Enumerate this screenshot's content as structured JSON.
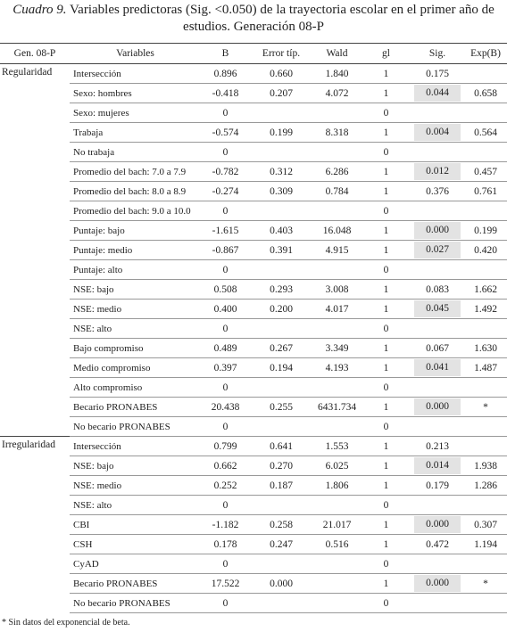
{
  "title": {
    "label": "Cuadro 9.",
    "text": "Variables predictoras (Sig. <0.050) de la trayectoria escolar en el primer año de estudios. Generación 08-P"
  },
  "table": {
    "header": [
      "Gen. 08-P",
      "Variables",
      "B",
      "Error típ.",
      "Wald",
      "gl",
      "Sig.",
      "Exp(B)"
    ],
    "groups": [
      {
        "name": "Regularidad",
        "rows": [
          {
            "cells": [
              "Intersección",
              "0.896",
              "0.660",
              "1.840",
              "1",
              "0.175",
              null
            ]
          },
          {
            "cells": [
              "Sexo: hombres",
              "-0.418",
              "0.207",
              "4.072",
              "1",
              "0.044",
              "0.658"
            ],
            "shaded": true
          },
          {
            "cells": [
              "Sexo: mujeres",
              "0",
              null,
              null,
              "0",
              null,
              null
            ]
          },
          {
            "cells": [
              "Trabaja",
              "-0.574",
              "0.199",
              "8.318",
              "1",
              "0.004",
              "0.564"
            ],
            "shaded": true
          },
          {
            "cells": [
              "No trabaja",
              "0",
              null,
              null,
              "0",
              null,
              null
            ]
          },
          {
            "cells": [
              "Promedio del bach: 7.0 a 7.9",
              "-0.782",
              "0.312",
              "6.286",
              "1",
              "0.012",
              "0.457"
            ],
            "shaded": true
          },
          {
            "cells": [
              "Promedio del bach: 8.0 a 8.9",
              "-0.274",
              "0.309",
              "0.784",
              "1",
              "0.376",
              "0.761"
            ]
          },
          {
            "cells": [
              "Promedio del bach: 9.0 a 10.0",
              "0",
              null,
              null,
              "0",
              null,
              null
            ]
          },
          {
            "cells": [
              "Puntaje: bajo",
              "-1.615",
              "0.403",
              "16.048",
              "1",
              "0.000",
              "0.199"
            ],
            "shaded": true
          },
          {
            "cells": [
              "Puntaje: medio",
              "-0.867",
              "0.391",
              "4.915",
              "1",
              "0.027",
              "0.420"
            ],
            "shaded": true
          },
          {
            "cells": [
              "Puntaje: alto",
              "0",
              null,
              null,
              "0",
              null,
              null
            ]
          },
          {
            "cells": [
              "NSE: bajo",
              "0.508",
              "0.293",
              "3.008",
              "1",
              "0.083",
              "1.662"
            ]
          },
          {
            "cells": [
              "NSE: medio",
              "0.400",
              "0.200",
              "4.017",
              "1",
              "0.045",
              "1.492"
            ],
            "shaded": true
          },
          {
            "cells": [
              "NSE: alto",
              "0",
              null,
              null,
              "0",
              null,
              null
            ]
          },
          {
            "cells": [
              "Bajo compromiso",
              "0.489",
              "0.267",
              "3.349",
              "1",
              "0.067",
              "1.630"
            ]
          },
          {
            "cells": [
              "Medio compromiso",
              "0.397",
              "0.194",
              "4.193",
              "1",
              "0.041",
              "1.487"
            ],
            "shaded": true
          },
          {
            "cells": [
              "Alto compromiso",
              "0",
              null,
              null,
              "0",
              null,
              null
            ]
          },
          {
            "cells": [
              "Becario PRONABES",
              "20.438",
              "0.255",
              "6431.734",
              "1",
              "0.000",
              "*"
            ],
            "shaded": true
          },
          {
            "cells": [
              "No becario PRONABES",
              "0",
              null,
              null,
              "0",
              null,
              null
            ]
          }
        ]
      },
      {
        "name": "Irregularidad",
        "rows": [
          {
            "cells": [
              "Intersección",
              "0.799",
              "0.641",
              "1.553",
              "1",
              "0.213",
              null
            ]
          },
          {
            "cells": [
              "NSE: bajo",
              "0.662",
              "0.270",
              "6.025",
              "1",
              "0.014",
              "1.938"
            ],
            "shaded": true
          },
          {
            "cells": [
              "NSE: medio",
              "0.252",
              "0.187",
              "1.806",
              "1",
              "0.179",
              "1.286"
            ]
          },
          {
            "cells": [
              "NSE: alto",
              "0",
              null,
              null,
              "0",
              null,
              null
            ]
          },
          {
            "cells": [
              "CBI",
              "-1.182",
              "0.258",
              "21.017",
              "1",
              "0.000",
              "0.307"
            ],
            "shaded": true
          },
          {
            "cells": [
              "CSH",
              "0.178",
              "0.247",
              "0.516",
              "1",
              "0.472",
              "1.194"
            ]
          },
          {
            "cells": [
              "CyAD",
              "0",
              null,
              null,
              "0",
              null,
              null
            ]
          },
          {
            "cells": [
              "Becario PRONABES",
              "17.522",
              "0.000",
              null,
              "1",
              "0.000",
              "*"
            ],
            "shaded": true
          },
          {
            "cells": [
              "No becario PRONABES",
              "0",
              null,
              null,
              "0",
              null,
              null
            ]
          }
        ]
      }
    ]
  },
  "footnote": "* Sin datos del exponencial de beta."
}
